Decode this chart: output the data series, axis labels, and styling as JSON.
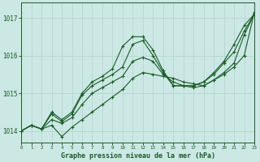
{
  "title": "Graphe pression niveau de la mer (hPa)",
  "xlim": [
    0,
    23
  ],
  "ylim": [
    1013.7,
    1017.4
  ],
  "yticks": [
    1014,
    1015,
    1016,
    1017
  ],
  "xticks": [
    0,
    1,
    2,
    3,
    4,
    5,
    6,
    7,
    8,
    9,
    10,
    11,
    12,
    13,
    14,
    15,
    16,
    17,
    18,
    19,
    20,
    21,
    22,
    23
  ],
  "background_color": "#cce8e4",
  "grid_color": "#b8d8d4",
  "line_color": "#1a5c28",
  "series": [
    [
      1014.0,
      1014.15,
      1014.05,
      1014.15,
      1013.85,
      1014.1,
      1014.3,
      1014.5,
      1014.7,
      1014.9,
      1015.1,
      1015.4,
      1015.55,
      1015.5,
      1015.45,
      1015.4,
      1015.3,
      1015.25,
      1015.2,
      1015.35,
      1015.5,
      1015.7,
      1016.0,
      1017.15
    ],
    [
      1014.0,
      1014.15,
      1014.05,
      1014.3,
      1014.2,
      1014.35,
      1014.7,
      1015.0,
      1015.15,
      1015.3,
      1015.45,
      1015.85,
      1015.95,
      1015.85,
      1015.5,
      1015.3,
      1015.2,
      1015.15,
      1015.2,
      1015.35,
      1015.55,
      1015.8,
      1016.55,
      1017.1
    ],
    [
      1014.0,
      1014.15,
      1014.05,
      1014.45,
      1014.25,
      1014.45,
      1014.95,
      1015.2,
      1015.35,
      1015.5,
      1015.7,
      1016.3,
      1016.4,
      1016.0,
      1015.55,
      1015.2,
      1015.2,
      1015.2,
      1015.3,
      1015.5,
      1015.8,
      1016.1,
      1016.65,
      1017.1
    ],
    [
      1014.0,
      1014.15,
      1014.05,
      1014.5,
      1014.3,
      1014.5,
      1015.0,
      1015.3,
      1015.45,
      1015.65,
      1016.25,
      1016.5,
      1016.5,
      1016.15,
      1015.6,
      1015.2,
      1015.2,
      1015.2,
      1015.3,
      1015.55,
      1015.85,
      1016.3,
      1016.8,
      1017.1
    ]
  ]
}
